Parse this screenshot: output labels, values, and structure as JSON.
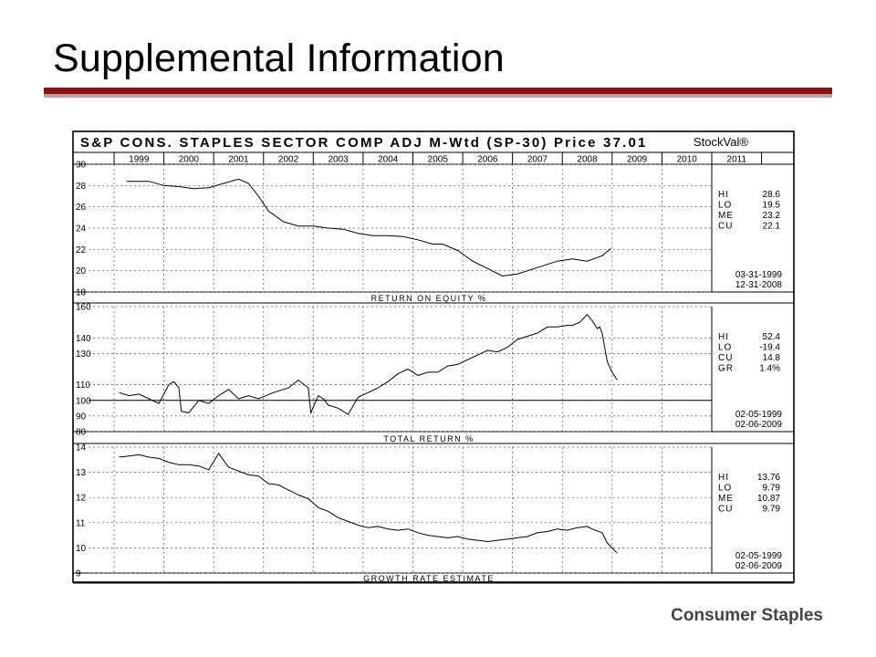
{
  "slide": {
    "title": "Supplemental Information",
    "footer": "Consumer Staples"
  },
  "chart_data": {
    "type": "line",
    "title": "S&P CONS. STAPLES SECTOR COMP ADJ M-Wtd (SP-30)  Price 37.01",
    "brand": "StockVal®",
    "years": [
      "1999",
      "2000",
      "2001",
      "2002",
      "2003",
      "2004",
      "2005",
      "2006",
      "2007",
      "2008",
      "2009",
      "2010",
      "2011"
    ],
    "panels": [
      {
        "name": "roe",
        "label": "RETURN ON EQUITY %",
        "ylim": [
          18,
          30
        ],
        "yticks": [
          18,
          20,
          22,
          24,
          26,
          28,
          30
        ],
        "series": {
          "x": [
            1999.25,
            1999.7,
            2000.0,
            2000.3,
            2000.6,
            2000.9,
            2001.2,
            2001.5,
            2001.7,
            2001.9,
            2002.1,
            2002.4,
            2002.7,
            2003.0,
            2003.3,
            2003.6,
            2003.9,
            2004.2,
            2004.5,
            2004.8,
            2005.1,
            2005.4,
            2005.6,
            2005.9,
            2006.2,
            2006.5,
            2006.8,
            2007.1,
            2007.5,
            2007.9,
            2008.2,
            2008.5,
            2008.8,
            2008.98
          ],
          "y": [
            28.4,
            28.4,
            28.0,
            27.9,
            27.7,
            27.8,
            28.2,
            28.6,
            28.2,
            27.0,
            25.6,
            24.6,
            24.2,
            24.2,
            24.0,
            23.9,
            23.5,
            23.3,
            23.3,
            23.2,
            22.9,
            22.5,
            22.5,
            21.9,
            20.9,
            20.2,
            19.5,
            19.7,
            20.3,
            20.9,
            21.1,
            20.9,
            21.4,
            22.1
          ]
        },
        "stats": [
          [
            "HI",
            "28.6"
          ],
          [
            "LO",
            "19.5"
          ],
          [
            "ME",
            "23.2"
          ],
          [
            "CU",
            "22.1"
          ]
        ],
        "dates": [
          "03-31-1999",
          "12-31-2008"
        ]
      },
      {
        "name": "total-return",
        "label": "TOTAL RETURN %",
        "ylim": [
          80,
          160
        ],
        "yticks": [
          80,
          90,
          100,
          110,
          130,
          140,
          160
        ],
        "series": {
          "x": [
            1999.1,
            1999.3,
            1999.5,
            1999.7,
            1999.9,
            2000.1,
            2000.2,
            2000.3,
            2000.35,
            2000.5,
            2000.7,
            2000.9,
            2001.1,
            2001.3,
            2001.5,
            2001.7,
            2001.9,
            2002.2,
            2002.5,
            2002.7,
            2002.9,
            2002.95,
            2003.1,
            2003.2,
            2003.3,
            2003.5,
            2003.7,
            2003.9,
            2004.1,
            2004.3,
            2004.5,
            2004.7,
            2004.9,
            2005.1,
            2005.3,
            2005.5,
            2005.7,
            2005.9,
            2006.1,
            2006.3,
            2006.5,
            2006.7,
            2006.9,
            2007.1,
            2007.3,
            2007.5,
            2007.7,
            2007.9,
            2008.1,
            2008.2,
            2008.35,
            2008.5,
            2008.6,
            2008.7,
            2008.75,
            2008.8,
            2008.9,
            2009.0,
            2009.1
          ],
          "y": [
            105,
            103,
            104,
            101,
            98,
            110,
            112,
            108,
            93,
            92,
            100,
            98,
            103,
            107,
            101,
            103,
            101,
            105,
            108,
            113,
            108,
            92,
            103,
            101,
            97,
            95,
            91,
            102,
            105,
            108,
            112,
            117,
            120,
            116,
            118,
            118,
            122,
            123,
            126,
            129,
            132,
            131,
            134,
            139,
            141,
            143,
            147,
            147,
            148,
            148,
            150,
            155,
            151,
            146,
            147,
            143,
            125,
            118,
            113
          ]
        },
        "stats": [
          [
            "HI",
            "52.4"
          ],
          [
            "LO",
            "-19.4"
          ],
          [
            "CU",
            "14.8"
          ],
          [
            "GR",
            "1.4%"
          ]
        ],
        "dates": [
          "02-05-1999",
          "02-06-2009"
        ]
      },
      {
        "name": "growth-rate",
        "label": "GROWTH RATE ESTIMATE",
        "ylim": [
          9,
          14
        ],
        "yticks": [
          9,
          10,
          11,
          12,
          13,
          14
        ],
        "series": {
          "x": [
            1999.1,
            1999.3,
            1999.5,
            1999.7,
            1999.9,
            2000.1,
            2000.3,
            2000.5,
            2000.7,
            2000.9,
            2001.1,
            2001.3,
            2001.5,
            2001.7,
            2001.9,
            2002.1,
            2002.3,
            2002.5,
            2002.7,
            2002.9,
            2003.1,
            2003.3,
            2003.5,
            2003.7,
            2003.9,
            2004.1,
            2004.3,
            2004.5,
            2004.7,
            2004.9,
            2005.1,
            2005.3,
            2005.5,
            2005.7,
            2005.9,
            2006.1,
            2006.3,
            2006.5,
            2006.7,
            2006.9,
            2007.1,
            2007.3,
            2007.5,
            2007.7,
            2007.9,
            2008.1,
            2008.3,
            2008.5,
            2008.6,
            2008.8,
            2008.9,
            2009.0,
            2009.1
          ],
          "y": [
            13.6,
            13.65,
            13.7,
            13.6,
            13.55,
            13.4,
            13.3,
            13.3,
            13.25,
            13.1,
            13.75,
            13.2,
            13.05,
            12.9,
            12.85,
            12.55,
            12.5,
            12.3,
            12.1,
            11.95,
            11.6,
            11.45,
            11.2,
            11.05,
            10.9,
            10.8,
            10.85,
            10.75,
            10.7,
            10.75,
            10.6,
            10.5,
            10.45,
            10.4,
            10.45,
            10.35,
            10.3,
            10.25,
            10.3,
            10.35,
            10.4,
            10.45,
            10.6,
            10.65,
            10.75,
            10.7,
            10.8,
            10.85,
            10.75,
            10.6,
            10.2,
            10.0,
            9.79
          ]
        },
        "stats": [
          [
            "HI",
            "13.76"
          ],
          [
            "LO",
            "9.79"
          ],
          [
            "ME",
            "10.87"
          ],
          [
            "CU",
            "9.79"
          ]
        ],
        "dates": [
          "02-05-1999",
          "02-06-2009"
        ]
      }
    ]
  }
}
